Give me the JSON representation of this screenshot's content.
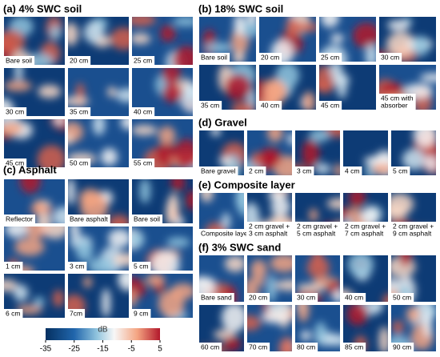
{
  "panels": [
    {
      "title": "(a) 4% SWC  soil",
      "tiles": [
        [
          "Bare soil"
        ],
        [
          "20 cm"
        ],
        [
          "25 cm"
        ],
        [
          "30 cm"
        ],
        [
          "35 cm"
        ],
        [
          "40 cm"
        ],
        [
          "45 cm"
        ],
        [
          "50 cm"
        ],
        [
          "55 cm"
        ]
      ]
    },
    {
      "title": "(b) 18% SWC  soil",
      "tiles": [
        [
          "Bare soil"
        ],
        [
          "20 cm"
        ],
        [
          "25 cm"
        ],
        [
          "30 cm"
        ],
        [
          "35 cm"
        ],
        [
          "40 cm"
        ],
        [
          "45 cm"
        ],
        [
          "45 cm with",
          "absorber"
        ]
      ]
    },
    {
      "title": "(c) Asphalt",
      "tiles": [
        [
          "Reflector"
        ],
        [
          "Bare asphalt"
        ],
        [
          "Bare soil"
        ],
        [
          "1 cm"
        ],
        [
          "3 cm"
        ],
        [
          "5 cm"
        ],
        [
          "6 cm"
        ],
        [
          "7cm"
        ],
        [
          "9 cm"
        ]
      ]
    },
    {
      "title": "(d) Gravel",
      "tiles": [
        [
          "Bare gravel"
        ],
        [
          "2 cm"
        ],
        [
          "3 cm"
        ],
        [
          "4 cm"
        ],
        [
          "5 cm"
        ]
      ]
    },
    {
      "title": "(e) Composite layer",
      "tiles": [
        [
          "Composite layer"
        ],
        [
          "2 cm gravel +",
          "3 cm asphalt"
        ],
        [
          "2 cm gravel +",
          "5 cm asphalt"
        ],
        [
          "2 cm gravel +",
          "7 cm asphalt"
        ],
        [
          "2 cm gravel +",
          "9 cm asphalt"
        ]
      ]
    },
    {
      "title": "(f) 3% SWC  sand",
      "tiles": [
        [
          "Bare sand"
        ],
        [
          "20 cm"
        ],
        [
          "30 cm"
        ],
        [
          "40 cm"
        ],
        [
          "50 cm"
        ],
        [
          "60 cm"
        ],
        [
          "70 cm"
        ],
        [
          "80 cm"
        ],
        [
          "85 cm"
        ],
        [
          "90 cm"
        ]
      ]
    }
  ],
  "colorbar": {
    "label": "dB",
    "ticks": [
      -35,
      -25,
      -15,
      -5,
      5
    ]
  }
}
